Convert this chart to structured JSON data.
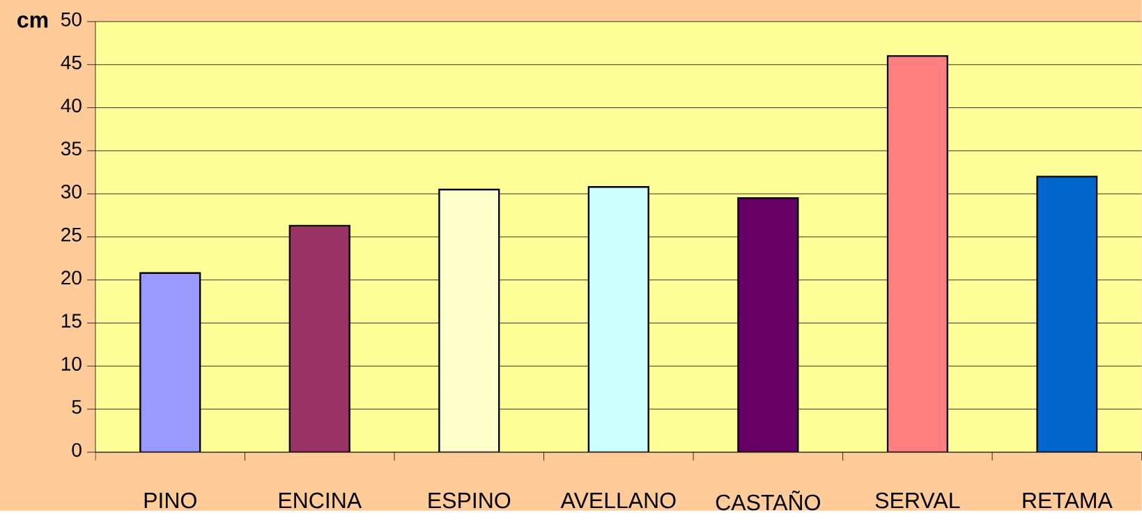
{
  "chart_data": {
    "type": "bar",
    "ylabel": "cm",
    "categories": [
      "PINO",
      "ENCINA",
      "ESPINO",
      "AVELLANO",
      "CASTAÑO",
      "SERVAL",
      "RETAMA"
    ],
    "values": [
      20.8,
      26.3,
      30.5,
      30.8,
      29.5,
      46.0,
      32.0
    ],
    "colors": [
      "#9999ff",
      "#993366",
      "#ffffcc",
      "#ccffff",
      "#660066",
      "#ff8080",
      "#0066cc"
    ],
    "ylim": [
      0,
      50
    ],
    "yticks": [
      0,
      5,
      10,
      15,
      20,
      25,
      30,
      35,
      40,
      45,
      50
    ],
    "grid": "y"
  }
}
